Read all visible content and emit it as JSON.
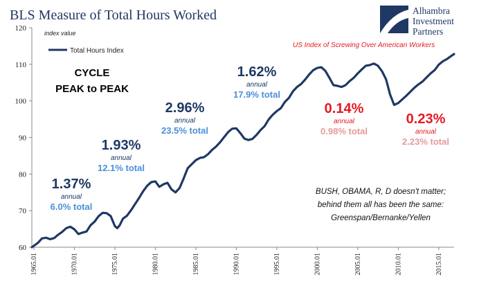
{
  "title": "BLS Measure of Total Hours Worked",
  "logo": {
    "lines": [
      "Alhambra",
      "Investment",
      "Partners"
    ]
  },
  "colors": {
    "line": "#1f3864",
    "dark_blue": "#1f3864",
    "light_blue": "#4a90d9",
    "red": "#e31b23",
    "pink": "#e59a9a",
    "axis": "#888888"
  },
  "chart_data": {
    "type": "line",
    "title": "BLS Measure of Total Hours Worked",
    "ylabel": "index value",
    "ylim": [
      60,
      120
    ],
    "yticks": [
      60,
      70,
      80,
      90,
      100,
      110,
      120
    ],
    "xticks": [
      "1965.01",
      "1970.01",
      "1975.01",
      "1980.01",
      "1985.01",
      "1990.01",
      "1995.01",
      "2000.01",
      "2005.01",
      "2010.01",
      "2015.01"
    ],
    "xlim": [
      1964.75,
      2016.9
    ],
    "grid": false,
    "legend": "top-left",
    "series": [
      {
        "name": "Total Hours Index",
        "x": [
          1964.75,
          1965.5,
          1966.0,
          1966.5,
          1967.0,
          1967.5,
          1968.0,
          1968.5,
          1969.0,
          1969.5,
          1970.0,
          1970.5,
          1971.0,
          1971.5,
          1972.0,
          1972.5,
          1973.0,
          1973.5,
          1974.0,
          1974.5,
          1975.0,
          1975.3,
          1975.6,
          1976.0,
          1976.5,
          1977.0,
          1977.5,
          1978.0,
          1978.5,
          1979.0,
          1979.5,
          1980.0,
          1980.5,
          1981.0,
          1981.5,
          1982.0,
          1982.5,
          1983.0,
          1983.5,
          1984.0,
          1984.5,
          1985.0,
          1985.5,
          1986.0,
          1986.5,
          1987.0,
          1987.5,
          1988.0,
          1988.5,
          1989.0,
          1989.5,
          1990.0,
          1990.5,
          1991.0,
          1991.5,
          1992.0,
          1992.5,
          1993.0,
          1993.5,
          1994.0,
          1994.5,
          1995.0,
          1995.5,
          1996.0,
          1996.5,
          1997.0,
          1997.5,
          1998.0,
          1998.5,
          1999.0,
          1999.5,
          2000.0,
          2000.5,
          2001.0,
          2001.5,
          2002.0,
          2002.5,
          2003.0,
          2003.5,
          2004.0,
          2004.5,
          2005.0,
          2005.5,
          2006.0,
          2006.5,
          2007.0,
          2007.5,
          2008.0,
          2008.5,
          2009.0,
          2009.5,
          2010.0,
          2010.5,
          2011.0,
          2011.5,
          2012.0,
          2012.5,
          2013.0,
          2013.5,
          2014.0,
          2014.5,
          2015.0,
          2015.5,
          2016.0,
          2016.5,
          2016.9
        ],
        "values": [
          60.0,
          61.2,
          62.4,
          62.6,
          62.2,
          62.5,
          63.4,
          64.2,
          65.2,
          65.6,
          64.9,
          63.6,
          64.0,
          64.3,
          66.0,
          67.0,
          68.5,
          69.4,
          69.3,
          68.5,
          65.8,
          65.2,
          66.0,
          67.8,
          68.6,
          70.1,
          71.8,
          73.5,
          75.3,
          76.8,
          77.8,
          78.0,
          76.5,
          77.2,
          77.6,
          75.8,
          75.0,
          76.2,
          78.8,
          81.6,
          82.7,
          83.8,
          84.4,
          84.6,
          85.4,
          86.6,
          87.5,
          88.7,
          90.1,
          91.5,
          92.4,
          92.5,
          91.2,
          89.7,
          89.3,
          89.6,
          90.7,
          92.0,
          93.1,
          94.9,
          96.2,
          97.2,
          98.0,
          99.7,
          100.8,
          102.6,
          103.8,
          104.6,
          105.8,
          107.2,
          108.4,
          109.0,
          109.2,
          108.2,
          106.3,
          104.3,
          104.1,
          103.8,
          104.3,
          105.4,
          106.3,
          107.5,
          108.6,
          109.6,
          109.8,
          110.2,
          109.6,
          108.1,
          105.9,
          101.7,
          98.9,
          99.4,
          100.4,
          101.4,
          102.5,
          103.6,
          104.5,
          105.3,
          106.4,
          107.5,
          108.4,
          109.9,
          110.8,
          111.4,
          112.2,
          112.8
        ]
      }
    ],
    "annotations": {
      "cycle_header": [
        "CYCLE",
        "PEAK to PEAK"
      ],
      "cycles": [
        {
          "pct": "1.37%",
          "annual": "annual",
          "total": "6.0% total",
          "pct_color": "#1f3864",
          "total_color": "#4a90d9"
        },
        {
          "pct": "1.93%",
          "annual": "annual",
          "total": "12.1% total",
          "pct_color": "#1f3864",
          "total_color": "#4a90d9"
        },
        {
          "pct": "2.96%",
          "annual": "annual",
          "total": "23.5% total",
          "pct_color": "#1f3864",
          "total_color": "#4a90d9"
        },
        {
          "pct": "1.62%",
          "annual": "annual",
          "total": "17.9% total",
          "pct_color": "#1f3864",
          "total_color": "#4a90d9"
        },
        {
          "pct": "0.14%",
          "annual": "annual",
          "total": "0.98% total",
          "pct_color": "#e31b23",
          "total_color": "#e59a9a"
        },
        {
          "pct": "0.23%",
          "annual": "annual",
          "total": "2.23% total",
          "pct_color": "#e31b23",
          "total_color": "#e59a9a"
        }
      ],
      "red_note": "US Index of Screwing Over American Workers",
      "footnote": [
        "BUSH, OBAMA, R, D doesn't matter;",
        "behind them all has been the same:",
        "Greenspan/Bernanke/Yellen"
      ]
    }
  }
}
